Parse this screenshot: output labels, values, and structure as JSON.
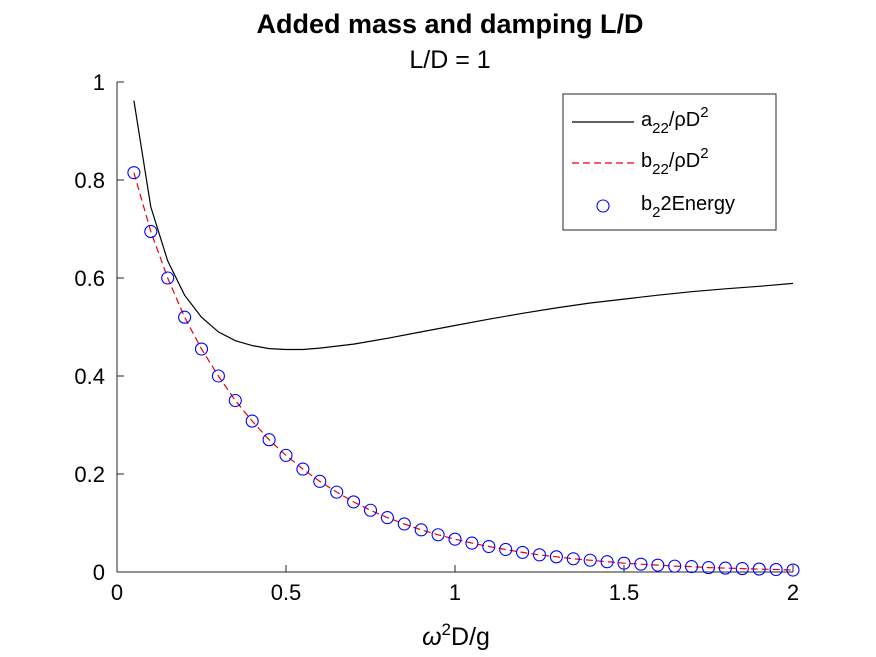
{
  "chart_data": {
    "type": "line",
    "title": "Added mass and damping L/D",
    "subtitle": "L/D = 1",
    "xlabel": {
      "base": "ω",
      "sup": "2",
      "rest": "D/g"
    },
    "ylabel": "",
    "xlim": [
      0,
      2
    ],
    "ylim": [
      0,
      1
    ],
    "xticks": [
      0,
      0.5,
      1,
      1.5,
      2
    ],
    "xtick_labels": [
      "0",
      "0.5",
      "1",
      "1.5",
      "2"
    ],
    "yticks": [
      0,
      0.2,
      0.4,
      0.6,
      0.8,
      1
    ],
    "ytick_labels": [
      "0",
      "0.2",
      "0.4",
      "0.6",
      "0.8",
      "1"
    ],
    "grid": false,
    "legend_position": "top-right",
    "series": [
      {
        "legend": {
          "base": "a",
          "sub": "22",
          "mid": "/ρD",
          "sup": "2"
        },
        "style": "line",
        "color": "#000000",
        "x": [
          0.05,
          0.1,
          0.15,
          0.2,
          0.25,
          0.3,
          0.35,
          0.4,
          0.45,
          0.5,
          0.55,
          0.6,
          0.7,
          0.8,
          0.9,
          1.0,
          1.1,
          1.2,
          1.3,
          1.4,
          1.5,
          1.6,
          1.7,
          1.8,
          1.9,
          2.0
        ],
        "y": [
          0.962,
          0.745,
          0.635,
          0.565,
          0.52,
          0.49,
          0.472,
          0.462,
          0.456,
          0.454,
          0.454,
          0.457,
          0.465,
          0.477,
          0.49,
          0.503,
          0.516,
          0.528,
          0.539,
          0.549,
          0.557,
          0.565,
          0.572,
          0.578,
          0.583,
          0.589
        ]
      },
      {
        "legend": {
          "base": "b",
          "sub": "22",
          "mid": "/ρD",
          "sup": "2"
        },
        "style": "dashed",
        "color": "#e8000b",
        "x": [
          0.05,
          0.1,
          0.15,
          0.2,
          0.25,
          0.3,
          0.35,
          0.4,
          0.45,
          0.5,
          0.55,
          0.6,
          0.65,
          0.7,
          0.75,
          0.8,
          0.85,
          0.9,
          0.95,
          1.0,
          1.05,
          1.1,
          1.15,
          1.2,
          1.25,
          1.3,
          1.35,
          1.4,
          1.45,
          1.5,
          1.55,
          1.6,
          1.65,
          1.7,
          1.75,
          1.8,
          1.85,
          1.9,
          1.95,
          2.0
        ],
        "y": [
          0.815,
          0.695,
          0.6,
          0.52,
          0.455,
          0.4,
          0.35,
          0.308,
          0.27,
          0.238,
          0.21,
          0.185,
          0.163,
          0.143,
          0.126,
          0.111,
          0.098,
          0.086,
          0.076,
          0.067,
          0.059,
          0.052,
          0.046,
          0.04,
          0.035,
          0.031,
          0.027,
          0.024,
          0.021,
          0.018,
          0.016,
          0.014,
          0.012,
          0.011,
          0.009,
          0.008,
          0.007,
          0.006,
          0.005,
          0.004
        ]
      },
      {
        "legend": {
          "base": "b",
          "sub": "2",
          "mid": "2Energy",
          "sup": ""
        },
        "style": "markers",
        "color": "#0000ff",
        "x": [
          0.05,
          0.1,
          0.15,
          0.2,
          0.25,
          0.3,
          0.35,
          0.4,
          0.45,
          0.5,
          0.55,
          0.6,
          0.65,
          0.7,
          0.75,
          0.8,
          0.85,
          0.9,
          0.95,
          1.0,
          1.05,
          1.1,
          1.15,
          1.2,
          1.25,
          1.3,
          1.35,
          1.4,
          1.45,
          1.5,
          1.55,
          1.6,
          1.65,
          1.7,
          1.75,
          1.8,
          1.85,
          1.9,
          1.95,
          2.0
        ],
        "y": [
          0.815,
          0.695,
          0.6,
          0.52,
          0.455,
          0.4,
          0.35,
          0.308,
          0.27,
          0.238,
          0.21,
          0.185,
          0.163,
          0.143,
          0.126,
          0.111,
          0.098,
          0.086,
          0.076,
          0.067,
          0.059,
          0.052,
          0.046,
          0.04,
          0.035,
          0.031,
          0.027,
          0.024,
          0.021,
          0.018,
          0.016,
          0.014,
          0.012,
          0.011,
          0.009,
          0.008,
          0.007,
          0.006,
          0.005,
          0.004
        ]
      }
    ]
  }
}
